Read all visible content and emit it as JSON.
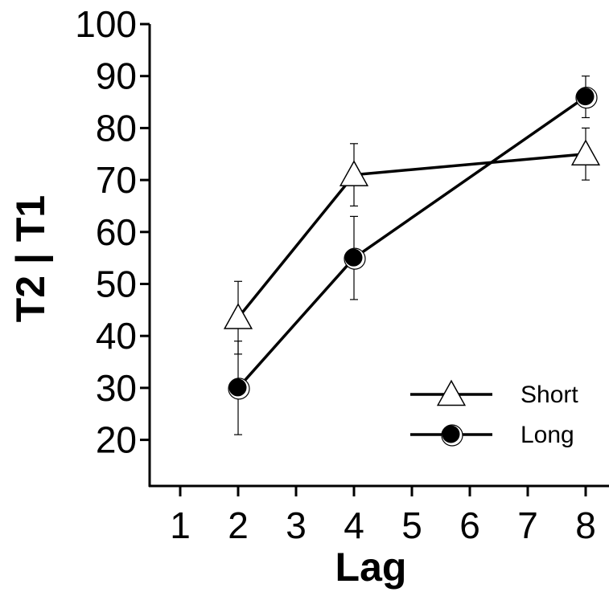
{
  "chart_data": {
    "type": "line",
    "xlabel": "Lag",
    "ylabel": "T2 | T1",
    "xlim": [
      0.5,
      8.5
    ],
    "ylim": [
      10,
      100
    ],
    "x_ticks": [
      1,
      2,
      3,
      4,
      5,
      6,
      7,
      8
    ],
    "x_tick_labels": [
      "1",
      "2",
      "3",
      "4",
      "5",
      "6",
      "7",
      "8"
    ],
    "y_ticks": [
      20,
      30,
      40,
      50,
      60,
      70,
      80,
      90,
      100
    ],
    "y_tick_labels": [
      "20",
      "30",
      "40",
      "50",
      "60",
      "70",
      "80",
      "90",
      "100"
    ],
    "grid": false,
    "legend_position": "bottom-right",
    "series": [
      {
        "name": "Short",
        "marker": "open-triangle",
        "x": [
          2,
          4,
          8
        ],
        "y": [
          43.5,
          71,
          75
        ],
        "error": [
          7,
          6,
          5
        ]
      },
      {
        "name": "Long",
        "marker": "filled-circle",
        "x": [
          2,
          4,
          8
        ],
        "y": [
          30,
          55,
          86
        ],
        "error": [
          9,
          8,
          4
        ]
      }
    ]
  },
  "colors": {
    "line": "#000000",
    "background": "#ffffff",
    "triangle_fill": "#ffffff",
    "circle_fill": "#000000"
  }
}
